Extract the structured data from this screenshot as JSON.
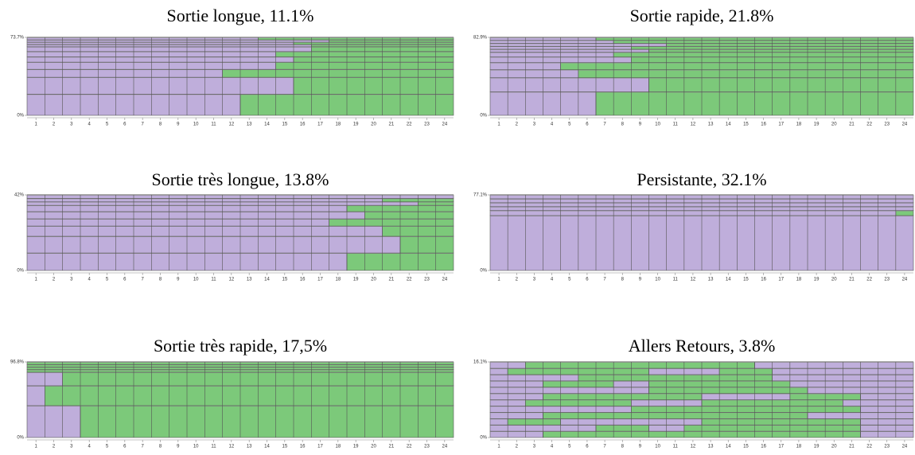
{
  "chart_data": [
    {
      "type": "sequence",
      "title": "Sortie longue, 11.1%",
      "colors": [
        "#bfaedb",
        "#7cc97a"
      ],
      "x": [
        1,
        2,
        3,
        4,
        5,
        6,
        7,
        8,
        9,
        10,
        11,
        12,
        13,
        14,
        15,
        16,
        17,
        18,
        19,
        20,
        21,
        22,
        23,
        24
      ],
      "ylim": [
        0,
        73.7
      ],
      "yticks": [
        {
          "value": 0,
          "label": "0%"
        },
        {
          "value": 73.7,
          "label": "73.7%"
        }
      ],
      "rows": [
        {
          "height": 20,
          "runs": [
            [
              0,
              12
            ],
            [
              1,
              12
            ]
          ]
        },
        {
          "height": 16,
          "runs": [
            [
              0,
              15
            ],
            [
              1,
              9
            ]
          ]
        },
        {
          "height": 7.5,
          "runs": [
            [
              0,
              11
            ],
            [
              1,
              13
            ]
          ]
        },
        {
          "height": 6.8,
          "runs": [
            [
              0,
              14
            ],
            [
              1,
              10
            ]
          ]
        },
        {
          "height": 5,
          "runs": [
            [
              0,
              15
            ],
            [
              1,
              9
            ]
          ]
        },
        {
          "height": 5,
          "runs": [
            [
              0,
              14
            ],
            [
              1,
              10
            ]
          ]
        },
        {
          "height": 4.5,
          "runs": [
            [
              0,
              16
            ],
            [
              1,
              8
            ]
          ]
        },
        {
          "height": 2.2,
          "runs": [
            [
              0,
              16
            ],
            [
              1,
              8
            ]
          ]
        },
        {
          "height": 2.2,
          "runs": [
            [
              0,
              15
            ],
            [
              1,
              9
            ]
          ]
        },
        {
          "height": 2.2,
          "runs": [
            [
              0,
              17
            ],
            [
              1,
              7
            ]
          ]
        },
        {
          "height": 2.3,
          "runs": [
            [
              0,
              13
            ],
            [
              1,
              11
            ]
          ]
        }
      ]
    },
    {
      "type": "sequence",
      "title": "Sortie rapide, 21.8%",
      "colors": [
        "#bfaedb",
        "#7cc97a"
      ],
      "x": [
        1,
        2,
        3,
        4,
        5,
        6,
        7,
        8,
        9,
        10,
        11,
        12,
        13,
        14,
        15,
        16,
        17,
        18,
        19,
        20,
        21,
        22,
        23,
        24
      ],
      "ylim": [
        0,
        82.9
      ],
      "yticks": [
        {
          "value": 0,
          "label": "0%"
        },
        {
          "value": 82.9,
          "label": "82.9%"
        }
      ],
      "rows": [
        {
          "height": 25,
          "runs": [
            [
              0,
              6
            ],
            [
              1,
              18
            ]
          ]
        },
        {
          "height": 15,
          "runs": [
            [
              0,
              9
            ],
            [
              1,
              15
            ]
          ]
        },
        {
          "height": 8.5,
          "runs": [
            [
              0,
              5
            ],
            [
              1,
              19
            ]
          ]
        },
        {
          "height": 7.6,
          "runs": [
            [
              0,
              4
            ],
            [
              1,
              20
            ]
          ]
        },
        {
          "height": 6,
          "runs": [
            [
              0,
              8
            ],
            [
              1,
              16
            ]
          ]
        },
        {
          "height": 5,
          "runs": [
            [
              0,
              7
            ],
            [
              1,
              17
            ]
          ]
        },
        {
          "height": 3.16,
          "runs": [
            [
              0,
              9
            ],
            [
              1,
              15
            ]
          ]
        },
        {
          "height": 3.16,
          "runs": [
            [
              0,
              8
            ],
            [
              1,
              16
            ]
          ]
        },
        {
          "height": 3.16,
          "runs": [
            [
              0,
              10
            ],
            [
              1,
              14
            ]
          ]
        },
        {
          "height": 3.16,
          "runs": [
            [
              0,
              7
            ],
            [
              1,
              17
            ]
          ]
        },
        {
          "height": 3.16,
          "runs": [
            [
              0,
              6
            ],
            [
              1,
              18
            ]
          ]
        }
      ]
    },
    {
      "type": "sequence",
      "title": "Sortie très longue, 13.8%",
      "colors": [
        "#bfaedb",
        "#7cc97a"
      ],
      "x": [
        1,
        2,
        3,
        4,
        5,
        6,
        7,
        8,
        9,
        10,
        11,
        12,
        13,
        14,
        15,
        16,
        17,
        18,
        19,
        20,
        21,
        22,
        23,
        24
      ],
      "ylim": [
        0,
        42
      ],
      "yticks": [
        {
          "value": 0,
          "label": "0%"
        },
        {
          "value": 42,
          "label": "42%"
        }
      ],
      "rows": [
        {
          "height": 9.7,
          "runs": [
            [
              0,
              18
            ],
            [
              1,
              6
            ]
          ]
        },
        {
          "height": 9.3,
          "runs": [
            [
              0,
              21
            ],
            [
              1,
              3
            ]
          ]
        },
        {
          "height": 5.7,
          "runs": [
            [
              0,
              20
            ],
            [
              1,
              4
            ]
          ]
        },
        {
          "height": 4,
          "runs": [
            [
              0,
              17
            ],
            [
              1,
              7
            ]
          ]
        },
        {
          "height": 4,
          "runs": [
            [
              0,
              19
            ],
            [
              1,
              5
            ]
          ]
        },
        {
          "height": 3.5,
          "runs": [
            [
              0,
              18
            ],
            [
              1,
              6
            ]
          ]
        },
        {
          "height": 1.93,
          "runs": [
            [
              0,
              22
            ],
            [
              1,
              2
            ]
          ]
        },
        {
          "height": 1.93,
          "runs": [
            [
              0,
              20
            ],
            [
              1,
              4
            ]
          ]
        },
        {
          "height": 1.94,
          "runs": [
            [
              0,
              24
            ]
          ]
        }
      ]
    },
    {
      "type": "sequence",
      "title": "Persistante, 32.1%",
      "colors": [
        "#bfaedb",
        "#7cc97a"
      ],
      "x": [
        1,
        2,
        3,
        4,
        5,
        6,
        7,
        8,
        9,
        10,
        11,
        12,
        13,
        14,
        15,
        16,
        17,
        18,
        19,
        20,
        21,
        22,
        23,
        24
      ],
      "ylim": [
        0,
        77.1
      ],
      "yticks": [
        {
          "value": 0,
          "label": "0%"
        },
        {
          "value": 77.1,
          "label": "77.1%"
        }
      ],
      "rows": [
        {
          "height": 56,
          "runs": [
            [
              0,
              24
            ]
          ]
        },
        {
          "height": 5.1,
          "runs": [
            [
              0,
              23
            ],
            [
              1,
              1
            ]
          ]
        },
        {
          "height": 4,
          "runs": [
            [
              0,
              24
            ]
          ]
        },
        {
          "height": 4,
          "runs": [
            [
              0,
              24
            ]
          ]
        },
        {
          "height": 4,
          "runs": [
            [
              0,
              24
            ]
          ]
        },
        {
          "height": 4,
          "runs": [
            [
              0,
              24
            ]
          ]
        }
      ]
    },
    {
      "type": "sequence",
      "title": "Sortie très rapide, 17,5%",
      "colors": [
        "#bfaedb",
        "#7cc97a"
      ],
      "x": [
        1,
        2,
        3,
        4,
        5,
        6,
        7,
        8,
        9,
        10,
        11,
        12,
        13,
        14,
        15,
        16,
        17,
        18,
        19,
        20,
        21,
        22,
        23,
        24
      ],
      "ylim": [
        0,
        96.8
      ],
      "yticks": [
        {
          "value": 0,
          "label": "0%"
        },
        {
          "value": 96.8,
          "label": "96.8%"
        }
      ],
      "rows": [
        {
          "height": 40.8,
          "runs": [
            [
              0,
              3
            ],
            [
              1,
              21
            ]
          ]
        },
        {
          "height": 25.5,
          "runs": [
            [
              0,
              1
            ],
            [
              1,
              23
            ]
          ]
        },
        {
          "height": 17.3,
          "runs": [
            [
              0,
              2
            ],
            [
              1,
              22
            ]
          ]
        },
        {
          "height": 3.3,
          "runs": [
            [
              1,
              24
            ]
          ]
        },
        {
          "height": 3.3,
          "runs": [
            [
              1,
              24
            ]
          ]
        },
        {
          "height": 3.3,
          "runs": [
            [
              1,
              24
            ]
          ]
        },
        {
          "height": 3.3,
          "runs": [
            [
              1,
              24
            ]
          ]
        }
      ]
    },
    {
      "type": "sequence",
      "title": "Allers Retours, 3.8%",
      "colors": [
        "#bfaedb",
        "#7cc97a"
      ],
      "x": [
        1,
        2,
        3,
        4,
        5,
        6,
        7,
        8,
        9,
        10,
        11,
        12,
        13,
        14,
        15,
        16,
        17,
        18,
        19,
        20,
        21,
        22,
        23,
        24
      ],
      "ylim": [
        0,
        16.1
      ],
      "yticks": [
        {
          "value": 0,
          "label": "0%"
        },
        {
          "value": 16.1,
          "label": "16.1%"
        }
      ],
      "rows": [
        {
          "height": 1.34,
          "runs": [
            [
              0,
              3
            ],
            [
              1,
              18
            ],
            [
              0,
              3
            ]
          ]
        },
        {
          "height": 1.34,
          "runs": [
            [
              0,
              6
            ],
            [
              1,
              3
            ],
            [
              0,
              2
            ],
            [
              1,
              10
            ],
            [
              0,
              3
            ]
          ]
        },
        {
          "height": 1.34,
          "runs": [
            [
              0,
              1
            ],
            [
              1,
              3
            ],
            [
              0,
              8
            ],
            [
              1,
              9
            ],
            [
              0,
              3
            ]
          ]
        },
        {
          "height": 1.34,
          "runs": [
            [
              0,
              3
            ],
            [
              1,
              15
            ],
            [
              0,
              6
            ]
          ]
        },
        {
          "height": 1.34,
          "runs": [
            [
              0,
              8
            ],
            [
              1,
              13
            ],
            [
              0,
              3
            ]
          ]
        },
        {
          "height": 1.34,
          "runs": [
            [
              0,
              2
            ],
            [
              1,
              6
            ],
            [
              0,
              4
            ],
            [
              1,
              8
            ],
            [
              0,
              4
            ]
          ]
        },
        {
          "height": 1.34,
          "runs": [
            [
              0,
              3
            ],
            [
              1,
              9
            ],
            [
              0,
              5
            ],
            [
              1,
              4
            ],
            [
              0,
              3
            ]
          ]
        },
        {
          "height": 1.34,
          "runs": [
            [
              0,
              9
            ],
            [
              1,
              9
            ],
            [
              0,
              6
            ]
          ]
        },
        {
          "height": 1.34,
          "runs": [
            [
              0,
              3
            ],
            [
              1,
              4
            ],
            [
              0,
              2
            ],
            [
              1,
              8
            ],
            [
              0,
              7
            ]
          ]
        },
        {
          "height": 1.34,
          "runs": [
            [
              0,
              5
            ],
            [
              1,
              11
            ],
            [
              0,
              8
            ]
          ]
        },
        {
          "height": 1.34,
          "runs": [
            [
              0,
              1
            ],
            [
              1,
              8
            ],
            [
              0,
              4
            ],
            [
              1,
              3
            ],
            [
              0,
              8
            ]
          ]
        },
        {
          "height": 1.36,
          "runs": [
            [
              0,
              2
            ],
            [
              1,
              13
            ],
            [
              0,
              9
            ]
          ]
        }
      ]
    }
  ]
}
